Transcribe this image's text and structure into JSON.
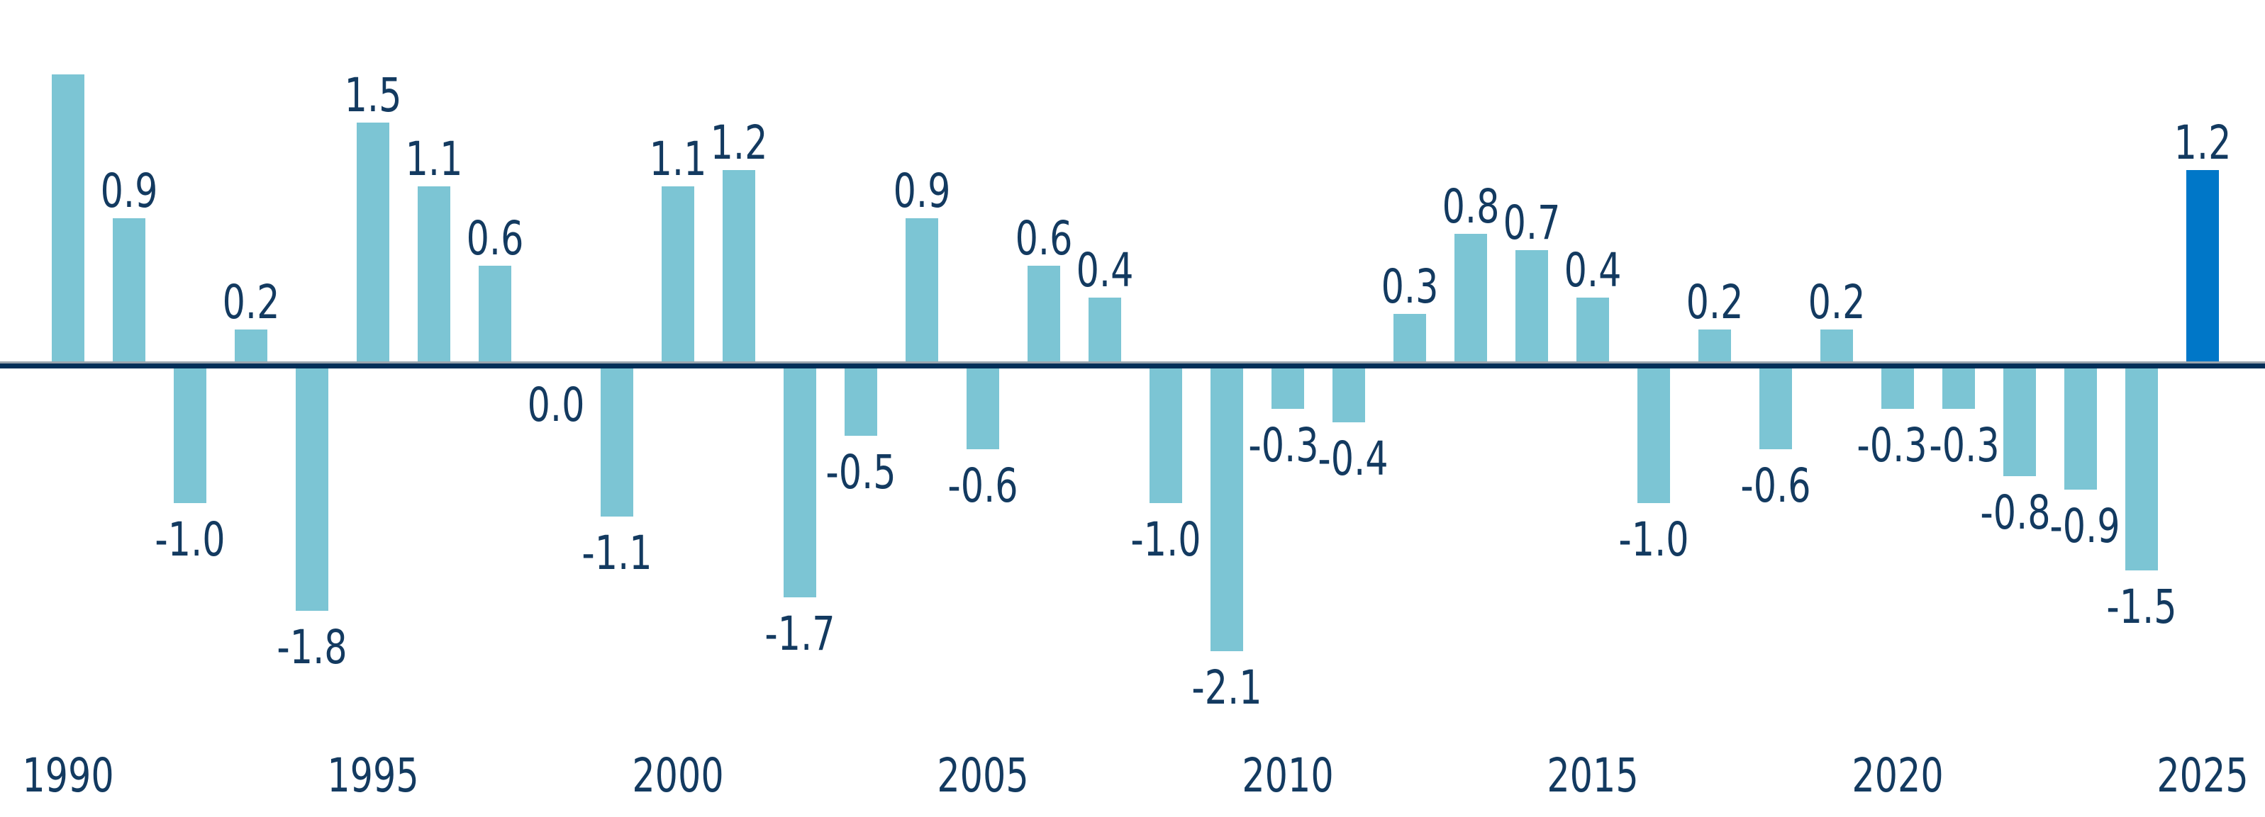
{
  "chart_data": {
    "type": "bar",
    "title": "",
    "xlabel": "",
    "ylabel": "",
    "x_range": [
      1990,
      2025
    ],
    "y_implied_range": [
      -2.4,
      2.0
    ],
    "grid": "off",
    "legend": "none",
    "zero_baseline": true,
    "x_tick_labels": [
      "1990",
      "1995",
      "2000",
      "2005",
      "2010",
      "2015",
      "2020",
      "2025"
    ],
    "highlight_year": 2025,
    "points": [
      {
        "year": 1990,
        "value": 1.8,
        "label": ""
      },
      {
        "year": 1991,
        "value": 0.9,
        "label": "0.9"
      },
      {
        "year": 1992,
        "value": -1.0,
        "label": "-1.0"
      },
      {
        "year": 1993,
        "value": 0.2,
        "label": "0.2"
      },
      {
        "year": 1994,
        "value": -1.8,
        "label": "-1.8"
      },
      {
        "year": 1995,
        "value": 1.5,
        "label": "1.5"
      },
      {
        "year": 1996,
        "value": 1.1,
        "label": "1.1"
      },
      {
        "year": 1997,
        "value": 0.6,
        "label": "0.6"
      },
      {
        "year": 1998,
        "value": 0.0,
        "label": "0.0"
      },
      {
        "year": 1999,
        "value": -1.1,
        "label": "-1.1"
      },
      {
        "year": 2000,
        "value": 1.1,
        "label": "1.1"
      },
      {
        "year": 2001,
        "value": 1.2,
        "label": "1.2"
      },
      {
        "year": 2002,
        "value": -1.7,
        "label": "-1.7"
      },
      {
        "year": 2003,
        "value": -0.5,
        "label": "-0.5"
      },
      {
        "year": 2004,
        "value": 0.9,
        "label": "0.9"
      },
      {
        "year": 2005,
        "value": -0.6,
        "label": "-0.6"
      },
      {
        "year": 2006,
        "value": 0.6,
        "label": "0.6"
      },
      {
        "year": 2007,
        "value": 0.4,
        "label": "0.4"
      },
      {
        "year": 2008,
        "value": -1.0,
        "label": "-1.0"
      },
      {
        "year": 2009,
        "value": -2.1,
        "label": "-2.1"
      },
      {
        "year": 2010,
        "value": -0.3,
        "label": "-0.3"
      },
      {
        "year": 2011,
        "value": -0.4,
        "label": "-0.4"
      },
      {
        "year": 2012,
        "value": 0.3,
        "label": "0.3"
      },
      {
        "year": 2013,
        "value": 0.8,
        "label": "0.8"
      },
      {
        "year": 2014,
        "value": 0.7,
        "label": "0.7"
      },
      {
        "year": 2015,
        "value": 0.4,
        "label": "0.4"
      },
      {
        "year": 2016,
        "value": -1.0,
        "label": "-1.0"
      },
      {
        "year": 2017,
        "value": 0.2,
        "label": "0.2"
      },
      {
        "year": 2018,
        "value": -0.6,
        "label": "-0.6"
      },
      {
        "year": 2019,
        "value": 0.2,
        "label": "0.2"
      },
      {
        "year": 2020,
        "value": -0.3,
        "label": "-0.3"
      },
      {
        "year": 2021,
        "value": -0.3,
        "label": "-0.3"
      },
      {
        "year": 2022,
        "value": -0.8,
        "label": "-0.8"
      },
      {
        "year": 2023,
        "value": -0.9,
        "label": "-0.9"
      },
      {
        "year": 2024,
        "value": -1.5,
        "label": "-1.5"
      },
      {
        "year": 2025,
        "value": 1.2,
        "label": "1.2"
      }
    ]
  },
  "style": {
    "bar_color": "#7cc5d4",
    "highlight_bar_color": "#0077c8",
    "axis_line_color": "#032f58",
    "zero_gridline_color": "#9aa4ad",
    "label_text_color": "#133a60",
    "background_color": "#ffffff"
  }
}
